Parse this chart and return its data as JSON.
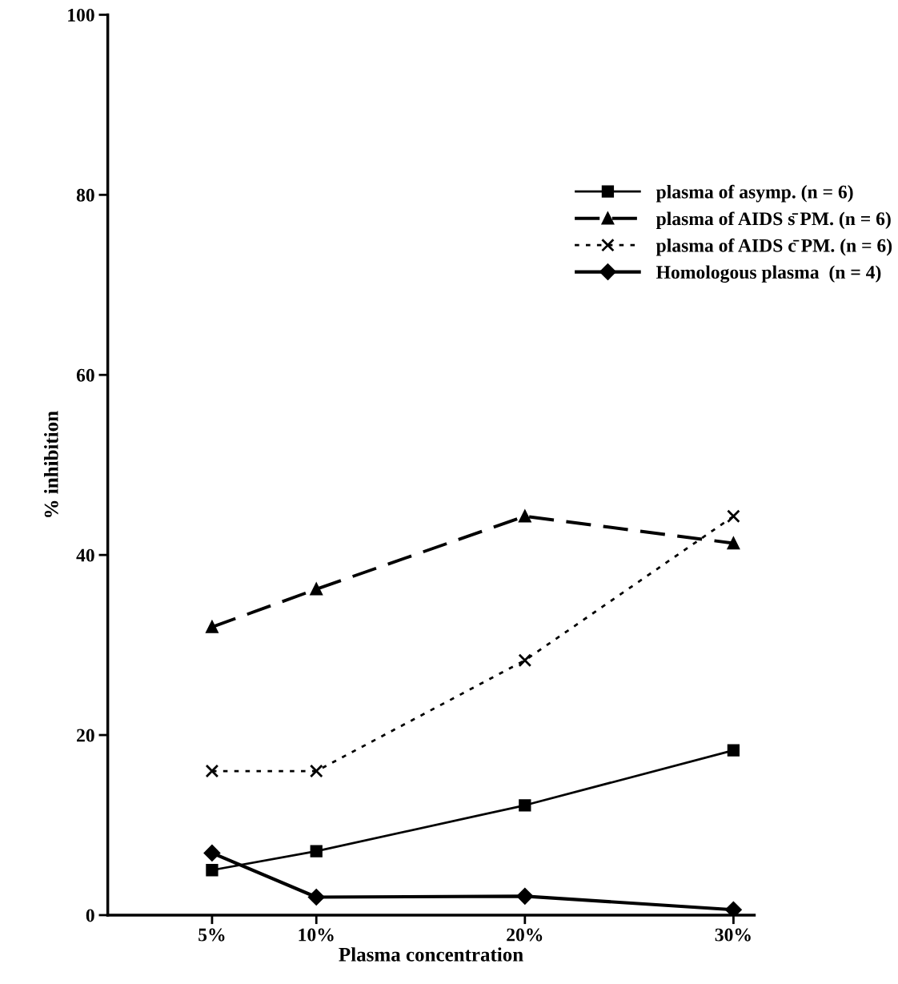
{
  "chart_data": {
    "type": "line",
    "xlabel": "Plasma concentration",
    "ylabel": "% inhibition",
    "x": [
      5,
      10,
      20,
      30
    ],
    "xlim": [
      0,
      31
    ],
    "xticks": [
      {
        "value": 5,
        "label": "5%"
      },
      {
        "value": 10,
        "label": "10%"
      },
      {
        "value": 20,
        "label": "20%"
      },
      {
        "value": 30,
        "label": "30%"
      }
    ],
    "ylim": [
      0,
      100
    ],
    "yticks": [
      0,
      20,
      40,
      60,
      80,
      100
    ],
    "grid": false,
    "legend": "upper right",
    "series": [
      {
        "name": "plasma of asymp. (n = 6)",
        "color": "#000000",
        "marker": "square",
        "line_style": "solid",
        "values": [
          5.0,
          7.1,
          12.2,
          18.3
        ]
      },
      {
        "name": "plasma of AIDS s̄ PM. (n = 6)",
        "color": "#000000",
        "marker": "triangle",
        "line_style": "dashed",
        "values": [
          32.0,
          36.2,
          44.3,
          41.3
        ]
      },
      {
        "name": "plasma of AIDS c̄ PM. (n = 6)",
        "color": "#000000",
        "marker": "cross",
        "line_style": "dotted",
        "values": [
          16.0,
          16.0,
          28.3,
          44.3
        ]
      },
      {
        "name": "Homologous plasma  (n = 4)",
        "color": "#000000",
        "marker": "diamond",
        "line_style": "solid",
        "values": [
          6.9,
          2.0,
          2.1,
          0.6
        ]
      }
    ]
  }
}
